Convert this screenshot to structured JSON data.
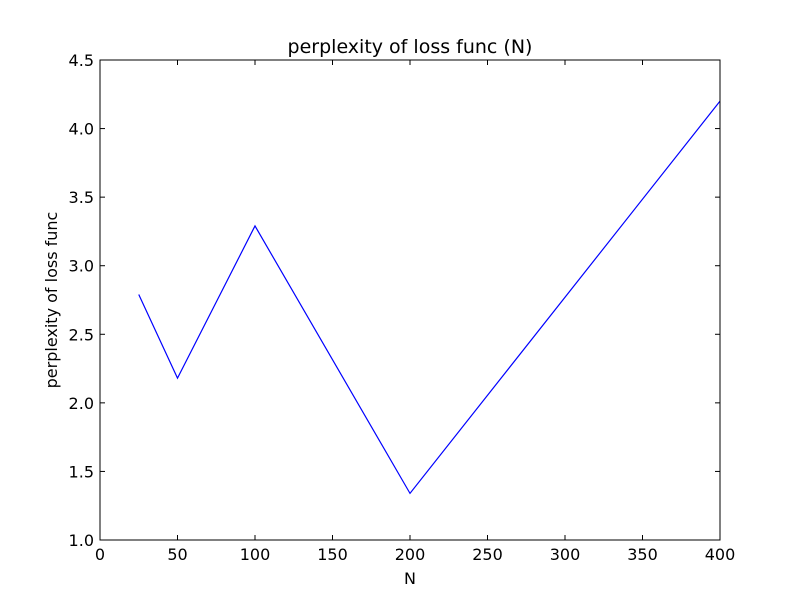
{
  "chart_data": {
    "type": "line",
    "title": "perplexity of loss func (N)",
    "xlabel": "N",
    "ylabel": "perplexity of loss func",
    "xlim": [
      0,
      400
    ],
    "ylim": [
      1.0,
      4.5
    ],
    "xticks": [
      0,
      50,
      100,
      150,
      200,
      250,
      300,
      350,
      400
    ],
    "yticks": [
      1.0,
      1.5,
      2.0,
      2.5,
      3.0,
      3.5,
      4.0,
      4.5
    ],
    "xtick_labels": [
      "0",
      "50",
      "100",
      "150",
      "200",
      "250",
      "300",
      "350",
      "400"
    ],
    "ytick_labels": [
      "1.0",
      "1.5",
      "2.0",
      "2.5",
      "3.0",
      "3.5",
      "4.0",
      "4.5"
    ],
    "grid": false,
    "series": [
      {
        "color": "#0000ff",
        "x": [
          25,
          50,
          100,
          200,
          400
        ],
        "y": [
          2.79,
          2.18,
          3.29,
          1.34,
          4.2
        ]
      }
    ]
  }
}
